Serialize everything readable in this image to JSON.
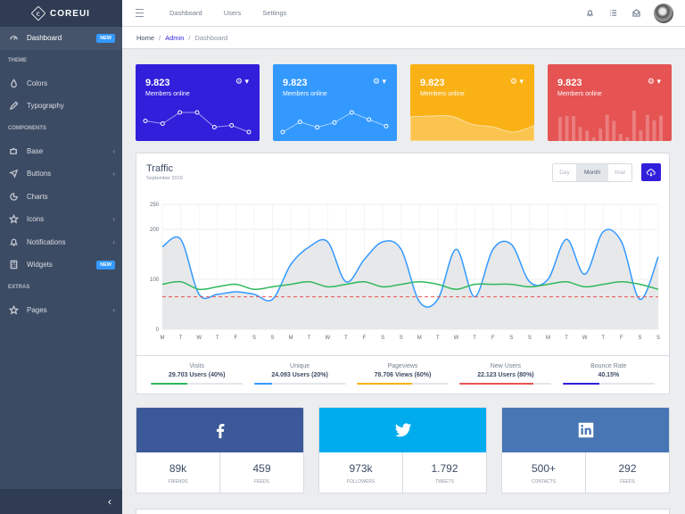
{
  "brand": {
    "name": "COREUI"
  },
  "sidebar": {
    "items": [
      {
        "label": "Dashboard",
        "icon": "speedometer-icon",
        "badge": "NEW"
      },
      {
        "title": "THEME"
      },
      {
        "label": "Colors",
        "icon": "drop-icon"
      },
      {
        "label": "Typography",
        "icon": "pencil-icon"
      },
      {
        "title": "COMPONENTS"
      },
      {
        "label": "Base",
        "icon": "puzzle-icon",
        "caret": "‹"
      },
      {
        "label": "Buttons",
        "icon": "cursor-icon",
        "caret": "‹"
      },
      {
        "label": "Charts",
        "icon": "chart-pie-icon"
      },
      {
        "label": "Icons",
        "icon": "star-icon",
        "caret": "‹"
      },
      {
        "label": "Notifications",
        "icon": "bell-icon",
        "caret": "‹"
      },
      {
        "label": "Widgets",
        "icon": "calculator-icon",
        "badge": "NEW"
      },
      {
        "title": "EXTRAS"
      },
      {
        "label": "Pages",
        "icon": "star-icon",
        "caret": "‹"
      }
    ],
    "toggler": "‹"
  },
  "header": {
    "links": [
      "Dashboard",
      "Users",
      "Settings"
    ]
  },
  "breadcrumb": {
    "home": "Home",
    "admin": "Admin",
    "current": "Dashboard",
    "sep": "/"
  },
  "widgets": [
    {
      "value": "9.823",
      "text": "Members online",
      "color": "#321fdb",
      "gear": "⚙ ▾",
      "chart": "line",
      "points": [
        65,
        59,
        84,
        84,
        51,
        55,
        40
      ]
    },
    {
      "value": "9.823",
      "text": "Members online",
      "color": "#39f",
      "gear": "⚙ ▾",
      "chart": "line",
      "points": [
        1,
        18,
        9,
        17,
        34,
        22,
        11
      ]
    },
    {
      "value": "9.823",
      "text": "Members online",
      "color": "#f9b115",
      "gear": "⚙ ▾",
      "chart": "area",
      "points": [
        78,
        81,
        80,
        45,
        34,
        12,
        40
      ]
    },
    {
      "value": "9.823",
      "text": "Members online",
      "color": "#e55353",
      "gear": "⚙ ▾",
      "chart": "bar",
      "points": [
        78,
        81,
        80,
        45,
        34,
        12,
        40,
        85,
        65,
        23,
        12,
        98,
        34,
        84,
        67,
        82
      ]
    }
  ],
  "traffic": {
    "title": "Traffic",
    "subtitle": "September 2019",
    "range_options": [
      "Day",
      "Month",
      "Year"
    ],
    "selected_range": "Month",
    "chart_data": {
      "type": "line",
      "categories": [
        "M",
        "T",
        "W",
        "T",
        "F",
        "S",
        "S",
        "M",
        "T",
        "W",
        "T",
        "F",
        "S",
        "S",
        "M",
        "T",
        "W",
        "T",
        "F",
        "S",
        "S",
        "M",
        "T",
        "W",
        "T",
        "F",
        "S",
        "S"
      ],
      "ylim": [
        0,
        250
      ],
      "yticks": [
        0,
        100,
        200,
        250
      ],
      "series": [
        {
          "name": "",
          "color": "#39f",
          "fill": true,
          "values": [
            165,
            180,
            70,
            70,
            75,
            70,
            60,
            130,
            165,
            175,
            95,
            140,
            175,
            160,
            55,
            60,
            160,
            65,
            160,
            170,
            95,
            100,
            180,
            110,
            195,
            175,
            60,
            145
          ]
        },
        {
          "name": "",
          "color": "#2eb85c",
          "values": [
            90,
            95,
            80,
            85,
            90,
            80,
            85,
            90,
            95,
            85,
            90,
            95,
            85,
            90,
            95,
            90,
            80,
            90,
            90,
            90,
            85,
            90,
            95,
            85,
            90,
            95,
            90,
            80
          ]
        },
        {
          "name": "",
          "color": "#e55353",
          "dashed": true,
          "values": [
            65,
            65,
            65,
            65,
            65,
            65,
            65,
            65,
            65,
            65,
            65,
            65,
            65,
            65,
            65,
            65,
            65,
            65,
            65,
            65,
            65,
            65,
            65,
            65,
            65,
            65,
            65,
            65
          ]
        }
      ],
      "grid": true
    },
    "stats": [
      {
        "label": "Visits",
        "value": "29.703 Users (40%)",
        "percent": 40,
        "color": "#2eb85c"
      },
      {
        "label": "Unique",
        "value": "24.093 Users (20%)",
        "percent": 20,
        "color": "#39f"
      },
      {
        "label": "Pageviews",
        "value": "78.706 Views (60%)",
        "percent": 60,
        "color": "#f9b115"
      },
      {
        "label": "New Users",
        "value": "22.123 Users (80%)",
        "percent": 80,
        "color": "#e55353"
      },
      {
        "label": "Bounce Rate",
        "value": "40.15%",
        "percent": 40,
        "color": "#321fdb"
      }
    ]
  },
  "social": [
    {
      "network": "facebook",
      "icon": "facebook-icon",
      "color": "#3b5998",
      "left_value": "89k",
      "left_label": "friends",
      "right_value": "459",
      "right_label": "feeds"
    },
    {
      "network": "twitter",
      "icon": "twitter-icon",
      "color": "#00aced",
      "left_value": "973k",
      "left_label": "followers",
      "right_value": "1.792",
      "right_label": "tweets"
    },
    {
      "network": "linkedin",
      "icon": "linkedin-icon",
      "color": "#4875b4",
      "left_value": "500+",
      "left_label": "contacts",
      "right_value": "292",
      "right_label": "feeds"
    }
  ]
}
